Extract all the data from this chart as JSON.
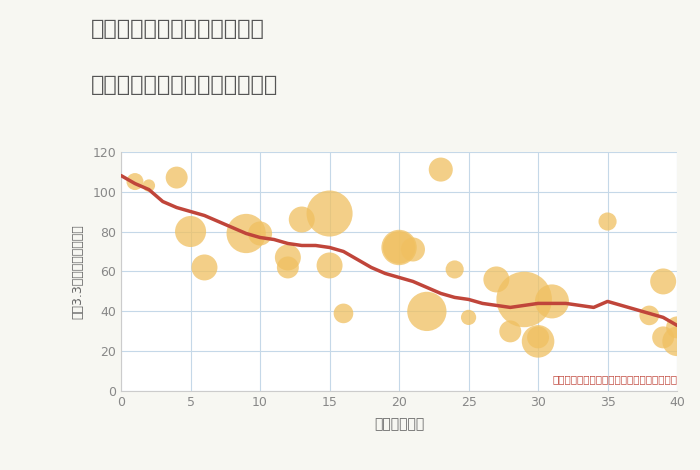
{
  "title": "愛知県名古屋市南区鳴尾町の\n築年数別中古マンション坪単価",
  "xlabel": "築年数（年）",
  "ylabel": "坪（3.3㎡）単価（万円）",
  "annotation": "円の大きさは、取引のあった物件面積を示す",
  "bg_color": "#f7f7f2",
  "plot_bg_color": "#ffffff",
  "grid_color": "#c5d8e8",
  "title_color": "#555555",
  "scatter_color": "#f0c060",
  "scatter_alpha": 0.75,
  "line_color": "#c0453a",
  "line_width": 2.5,
  "xlim": [
    0,
    40
  ],
  "ylim": [
    0,
    120
  ],
  "scatter_x": [
    1,
    2,
    4,
    5,
    6,
    9,
    10,
    12,
    12,
    13,
    15,
    15,
    16,
    20,
    20,
    21,
    22,
    23,
    24,
    25,
    27,
    28,
    29,
    30,
    30,
    31,
    35,
    38,
    39,
    39,
    40,
    40
  ],
  "scatter_y": [
    105,
    103,
    107,
    80,
    62,
    79,
    79,
    67,
    62,
    86,
    89,
    63,
    39,
    72,
    72,
    71,
    40,
    111,
    61,
    37,
    56,
    30,
    46,
    25,
    27,
    45,
    85,
    38,
    27,
    55,
    32,
    25
  ],
  "scatter_size": [
    150,
    80,
    250,
    500,
    350,
    800,
    300,
    350,
    250,
    350,
    1100,
    350,
    200,
    550,
    650,
    300,
    800,
    300,
    170,
    120,
    350,
    250,
    1600,
    550,
    250,
    600,
    170,
    200,
    250,
    350,
    250,
    450
  ],
  "line_x": [
    0,
    1,
    2,
    3,
    4,
    5,
    6,
    7,
    8,
    9,
    10,
    11,
    12,
    13,
    14,
    15,
    16,
    17,
    18,
    19,
    20,
    21,
    22,
    23,
    24,
    25,
    26,
    27,
    28,
    29,
    30,
    31,
    32,
    33,
    34,
    35,
    36,
    37,
    38,
    39,
    40
  ],
  "line_y": [
    108,
    104,
    101,
    95,
    92,
    90,
    88,
    85,
    82,
    79,
    77,
    76,
    74,
    73,
    73,
    72,
    70,
    66,
    62,
    59,
    57,
    55,
    52,
    49,
    47,
    46,
    44,
    43,
    42,
    43,
    44,
    44,
    44,
    43,
    42,
    45,
    43,
    41,
    39,
    37,
    33
  ]
}
